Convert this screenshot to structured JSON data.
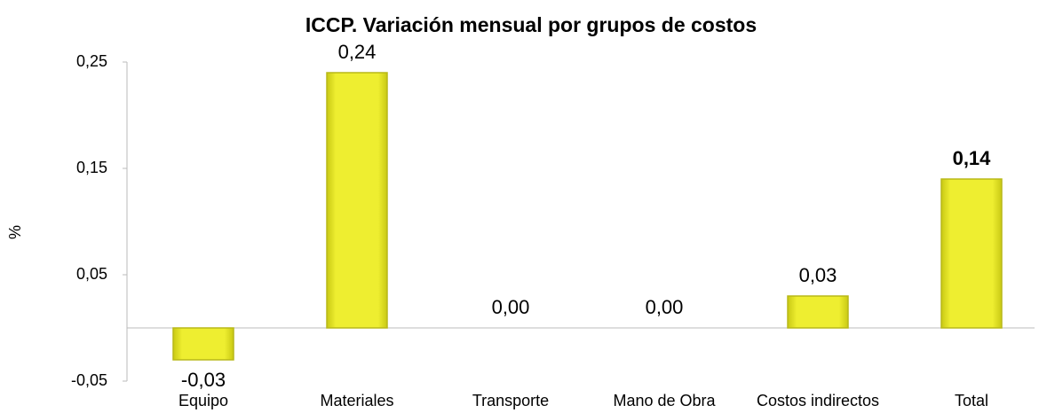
{
  "chart_data": {
    "type": "bar",
    "title": "ICCP. Variación mensual por grupos de costos",
    "ylabel": "%",
    "categories": [
      "Equipo",
      "Materiales",
      "Transporte",
      "Mano de Obra",
      "Costos indirectos",
      "Total"
    ],
    "values": [
      -0.03,
      0.24,
      0,
      0,
      0.03,
      0.14
    ],
    "value_labels": [
      "-0,03",
      "0,24",
      "0,00",
      "0,00",
      "0,03",
      "0,14"
    ],
    "value_label_bold": [
      false,
      false,
      false,
      false,
      false,
      true
    ],
    "color": "#e8e82c",
    "ylim": [
      -0.05,
      0.25
    ],
    "yticks": [
      {
        "value": -0.05,
        "label": "-0,05"
      },
      {
        "value": 0.05,
        "label": "0,05"
      },
      {
        "value": 0.15,
        "label": "0,15"
      },
      {
        "value": 0.25,
        "label": "0,25"
      }
    ],
    "grid": false
  }
}
